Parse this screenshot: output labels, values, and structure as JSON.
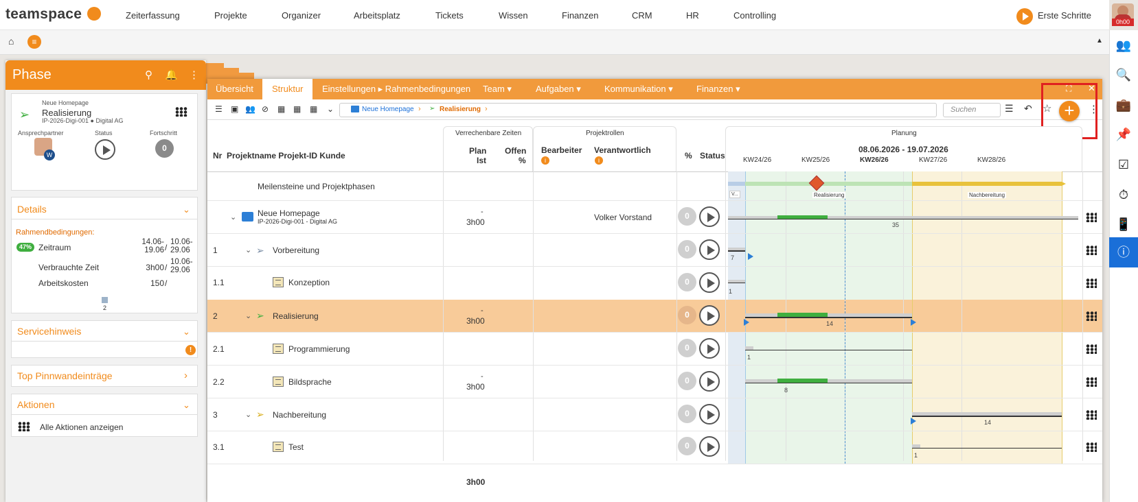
{
  "topnav": {
    "logo": "teamspace",
    "items": [
      "Zeiterfassung",
      "Projekte",
      "Organizer",
      "Arbeitsplatz",
      "Tickets",
      "Wissen",
      "Finanzen",
      "CRM",
      "HR",
      "Controlling"
    ],
    "erste_schritte": "Erste Schritte",
    "user_time": "0h00"
  },
  "sidebar": {
    "title": "Phase",
    "card": {
      "parent": "Neue Homepage",
      "name": "Realisierung",
      "sub": "IP-2026-Digi-001 ● Digital AG",
      "labels": [
        "Ansprechpartner",
        "Status",
        "Fortschritt"
      ],
      "progress": "0"
    },
    "details": {
      "title": "Details",
      "rahmen": "Rahmendbedingungen:",
      "pct": "47%",
      "zeitraum": "Zeitraum",
      "zeitraum_v1": "14.06-19.06",
      "zeitraum_v2": "10.06-29.06",
      "verbraucht": "Verbrauchte Zeit",
      "verbraucht_v1": "3h00",
      "verbraucht_v2": "10.06-29.06",
      "kosten": "Arbeitskosten",
      "kosten_v1": "150",
      "sep": "/",
      "count": "2"
    },
    "service": "Servicehinweis",
    "pinn": "Top Pinnwandeinträge",
    "aktionen": "Aktionen",
    "alle": "Alle Aktionen anzeigen"
  },
  "tabs": {
    "items": [
      "Übersicht",
      "Struktur",
      "Einstellungen ▸ Rahmenbedingungen",
      "Team ▾",
      "Aufgaben ▾",
      "Kommunikation ▾",
      "Finanzen ▾"
    ]
  },
  "toolbar": {
    "breadcrumb": [
      "Neue Homepage",
      "Realisierung"
    ],
    "search_placeholder": "Suchen"
  },
  "table": {
    "group_headers": {
      "zeiten": "Verrechenbare Zeiten",
      "rollen": "Projektrollen",
      "planung": "Planung"
    },
    "headers": {
      "nr": "Nr",
      "name": "Projektname Projekt-ID Kunde",
      "plan": "Plan",
      "ist": "Ist",
      "offen": "Offen",
      "offen_pct": "%",
      "bearbeiter": "Bearbeiter",
      "verantwortlich": "Verantwortlich",
      "pct": "%",
      "status": "Status"
    },
    "date_range": "08.06.2026 - 19.07.2026",
    "weeks": [
      "KW24/26",
      "KW25/26",
      "KW26/26",
      "KW27/26",
      "KW28/26"
    ],
    "milestone_row": "Meilensteine und Projektphasen",
    "phase_labels": {
      "v": "V...",
      "real": "Realisierung",
      "nach": "Nachbereitung"
    },
    "rows": [
      {
        "nr": "",
        "name": "Neue Homepage",
        "sub": "IP-2026-Digi-001 - Digital AG",
        "plan": "-",
        "ist": "3h00",
        "verantwortlich": "Volker Vorstand",
        "badge": "0",
        "gnum": "35"
      },
      {
        "nr": "1",
        "name": "Vorbereitung",
        "sub": "",
        "plan": "",
        "ist": "",
        "verantwortlich": "",
        "badge": "0",
        "gnum": "7"
      },
      {
        "nr": "1.1",
        "name": "Konzeption",
        "sub": "",
        "plan": "",
        "ist": "",
        "verantwortlich": "",
        "badge": "0",
        "gnum": "1"
      },
      {
        "nr": "2",
        "name": "Realisierung",
        "sub": "",
        "plan": "-",
        "ist": "3h00",
        "verantwortlich": "",
        "badge": "0",
        "gnum": "14"
      },
      {
        "nr": "2.1",
        "name": "Programmierung",
        "sub": "",
        "plan": "",
        "ist": "",
        "verantwortlich": "",
        "badge": "0",
        "gnum": "1"
      },
      {
        "nr": "2.2",
        "name": "Bildsprache",
        "sub": "",
        "plan": "-",
        "ist": "3h00",
        "verantwortlich": "",
        "badge": "0",
        "gnum": "8"
      },
      {
        "nr": "3",
        "name": "Nachbereitung",
        "sub": "",
        "plan": "",
        "ist": "",
        "verantwortlich": "",
        "badge": "0",
        "gnum": "14"
      },
      {
        "nr": "3.1",
        "name": "Test",
        "sub": "",
        "plan": "",
        "ist": "",
        "verantwortlich": "",
        "badge": "0",
        "gnum": "1"
      }
    ],
    "total": "3h00"
  },
  "colors": {
    "accent": "#f18b1c",
    "selected_row": "#f8cb99",
    "info_blue": "#1a6fd8"
  }
}
